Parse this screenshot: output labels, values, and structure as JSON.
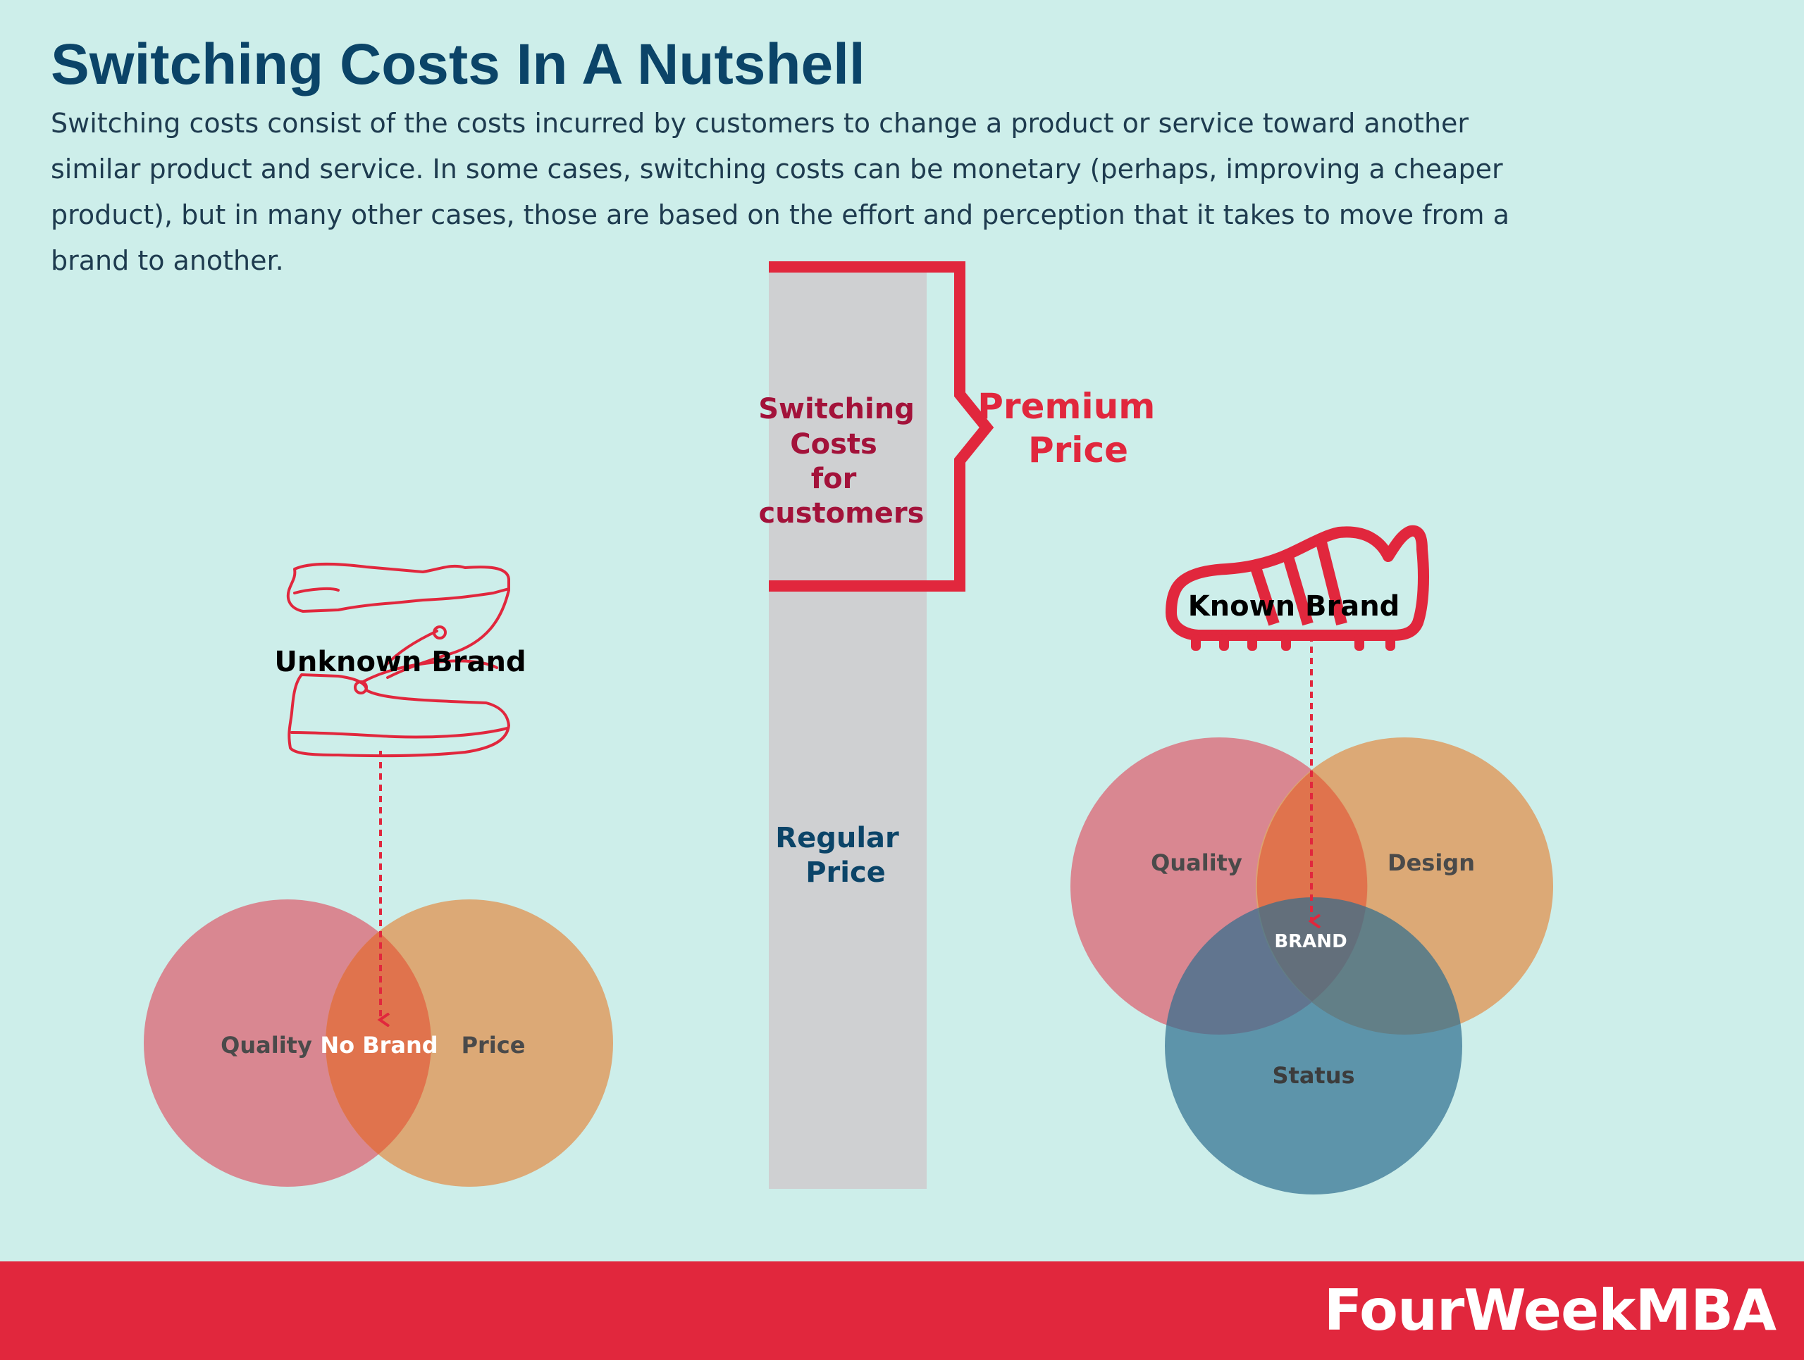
{
  "title": "Switching Costs In A Nutshell",
  "intro": "Switching costs consist of the costs incurred by customers to change a product or service toward another similar product and service. In some cases, switching costs can be monetary (perhaps, improving a cheaper product), but in many other cases, those are based on the effort and perception that it takes to move from a brand to another.",
  "price_bar": {
    "switching_lines": [
      "Switching",
      "Costs",
      "for",
      "customers"
    ],
    "premium_lines": [
      "Premium",
      "Price"
    ],
    "regular_lines": [
      "Regular",
      "Price"
    ]
  },
  "unknown_brand": {
    "label": "Unknown Brand",
    "venn": [
      "Quality",
      "No Brand",
      "Price"
    ]
  },
  "known_brand": {
    "label": "Known Brand",
    "venn": [
      "Quality",
      "Design",
      "BRAND",
      "Status"
    ]
  },
  "footer": {
    "logo": "FourWeekMBA"
  },
  "colors": {
    "background": "#cdeeea",
    "title": "#0b4468",
    "accent_red": "#e1273d",
    "quality_circle": "#d9818c",
    "price_circle": "#dca470",
    "status_circle": "#5b8ea5",
    "bar_gray": "#cfd0d2"
  }
}
